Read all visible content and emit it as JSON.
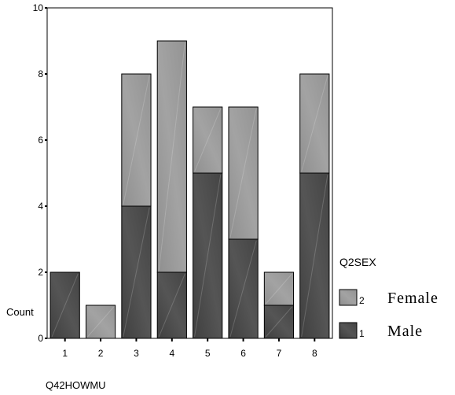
{
  "chart_data": {
    "type": "bar",
    "stacked": true,
    "categories": [
      "1",
      "2",
      "3",
      "4",
      "5",
      "6",
      "7",
      "8"
    ],
    "series": [
      {
        "name": "Male",
        "code": "1",
        "color": "#4d4d4d",
        "values": [
          2,
          0,
          4,
          2,
          5,
          3,
          1,
          5
        ]
      },
      {
        "name": "Female",
        "code": "2",
        "color": "#9a9a9a",
        "values": [
          0,
          1,
          4,
          7,
          2,
          4,
          1,
          3
        ]
      }
    ],
    "ylim": [
      0,
      10
    ],
    "yticks": [
      "0",
      "2",
      "4",
      "6",
      "8",
      "10"
    ],
    "xlabel": "Q42HOWMU",
    "ylabel": "Count",
    "legend_title": "Q2SEX",
    "legend_position": "right",
    "grid": false
  }
}
